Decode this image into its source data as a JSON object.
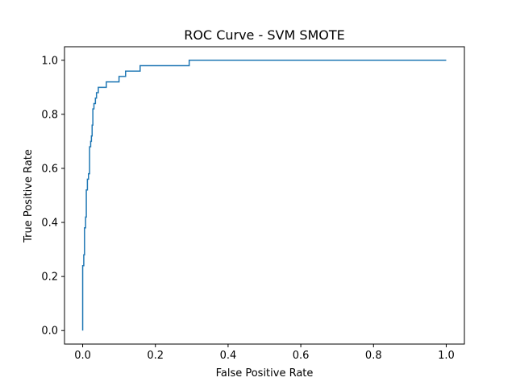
{
  "chart_data": {
    "type": "line",
    "title": "ROC Curve - SVM SMOTE",
    "xlabel": "False Positive Rate",
    "ylabel": "True Positive Rate",
    "xlim": [
      -0.05,
      1.05
    ],
    "ylim": [
      -0.05,
      1.05
    ],
    "x_ticks": [
      0.0,
      0.2,
      0.4,
      0.6,
      0.8,
      1.0
    ],
    "x_tick_labels": [
      "0.0",
      "0.2",
      "0.4",
      "0.6",
      "0.8",
      "1.0"
    ],
    "y_ticks": [
      0.0,
      0.2,
      0.4,
      0.6,
      0.8,
      1.0
    ],
    "y_tick_labels": [
      "0.0",
      "0.2",
      "0.4",
      "0.6",
      "0.8",
      "1.0"
    ],
    "grid": false,
    "legend": "none",
    "series": [
      {
        "color": "#1f77b4",
        "step": true,
        "points": [
          [
            0.0,
            0.0
          ],
          [
            0.0,
            0.24
          ],
          [
            0.003,
            0.24
          ],
          [
            0.003,
            0.28
          ],
          [
            0.005,
            0.28
          ],
          [
            0.005,
            0.38
          ],
          [
            0.008,
            0.38
          ],
          [
            0.008,
            0.42
          ],
          [
            0.01,
            0.42
          ],
          [
            0.01,
            0.52
          ],
          [
            0.013,
            0.52
          ],
          [
            0.013,
            0.56
          ],
          [
            0.016,
            0.56
          ],
          [
            0.016,
            0.58
          ],
          [
            0.019,
            0.58
          ],
          [
            0.019,
            0.68
          ],
          [
            0.022,
            0.68
          ],
          [
            0.022,
            0.7
          ],
          [
            0.024,
            0.7
          ],
          [
            0.024,
            0.72
          ],
          [
            0.026,
            0.72
          ],
          [
            0.026,
            0.76
          ],
          [
            0.028,
            0.76
          ],
          [
            0.028,
            0.82
          ],
          [
            0.031,
            0.82
          ],
          [
            0.031,
            0.84
          ],
          [
            0.035,
            0.84
          ],
          [
            0.035,
            0.86
          ],
          [
            0.038,
            0.86
          ],
          [
            0.038,
            0.88
          ],
          [
            0.043,
            0.88
          ],
          [
            0.043,
            0.9
          ],
          [
            0.065,
            0.9
          ],
          [
            0.065,
            0.92
          ],
          [
            0.1,
            0.92
          ],
          [
            0.1,
            0.94
          ],
          [
            0.118,
            0.94
          ],
          [
            0.118,
            0.96
          ],
          [
            0.158,
            0.96
          ],
          [
            0.158,
            0.98
          ],
          [
            0.293,
            0.98
          ],
          [
            0.293,
            1.0
          ],
          [
            1.0,
            1.0
          ]
        ]
      }
    ]
  }
}
